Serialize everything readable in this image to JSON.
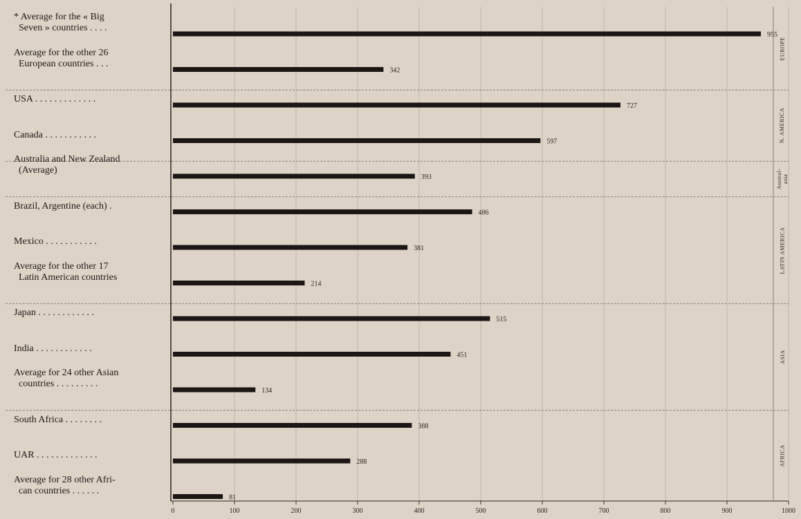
{
  "chart_data": {
    "type": "bar",
    "orientation": "horizontal",
    "categories": [
      "* Average for the « Big\n  Seven » countries . . . .",
      "Average for the other 26\n  European countries . . .",
      "USA . . . . . . . . . . . . .",
      "Canada . . . . . . . . . . .",
      "Australia and New Zealand\n  (Average)",
      "Brazil, Argentine (each) .",
      "Mexico . . . . . . . . . . .",
      "Average for the other 17\n  Latin American countries",
      "Japan . . . . . . . . . . . .",
      "India . . . . . . . . . . . .",
      "Average for 24 other Asian\n  countries . . . . . . . . .",
      "South Africa . . . . . . . .",
      "UAR . . . . . . . . . . . . .",
      "Average for 28 other Afri-\n  can countries . . . . . ."
    ],
    "values": [
      955,
      342,
      727,
      597,
      393,
      486,
      381,
      214,
      515,
      451,
      134,
      388,
      288,
      81
    ],
    "value_labels": [
      "955",
      "342",
      "727",
      "597",
      "393",
      "486",
      "381",
      "214",
      "515",
      "451",
      "134",
      "388",
      "288",
      "81"
    ],
    "regions": [
      {
        "name": "EUROPE",
        "first": 0,
        "last": 1
      },
      {
        "name": "N. AMERICA",
        "first": 2,
        "last": 3
      },
      {
        "name": "Austral-\nasia",
        "first": 4,
        "last": 4
      },
      {
        "name": "LATIN AMERICA",
        "first": 5,
        "last": 7
      },
      {
        "name": "ASIA",
        "first": 8,
        "last": 10
      },
      {
        "name": "AFRICA",
        "first": 11,
        "last": 13
      }
    ],
    "xlim": [
      0,
      1000
    ],
    "xticks": [
      "0",
      "100",
      "200",
      "300",
      "400",
      "500",
      "600",
      "700",
      "800",
      "900",
      "1000"
    ],
    "grid": true,
    "title": "",
    "xlabel": "",
    "ylabel": "",
    "colors": {
      "bar": "#1c1715",
      "background": "#ddd3c7",
      "grid": "#bfb4a8",
      "separator": "#6e6660"
    }
  }
}
